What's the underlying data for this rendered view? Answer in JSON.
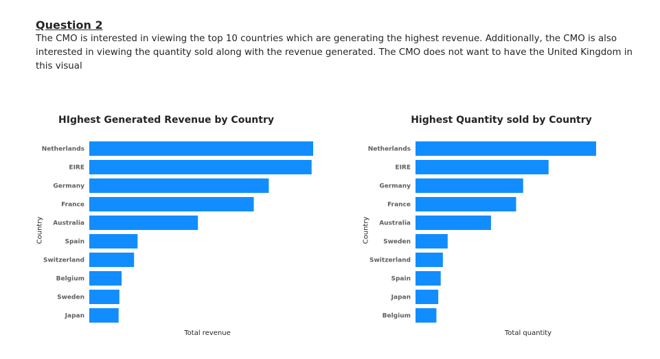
{
  "heading": "Question 2",
  "description": "The CMO is interested in viewing the top 10 countries which are generating the highest revenue. Additionally, the CMO is also interested in viewing the quantity sold along with the revenue generated. The CMO does not want to have the United Kingdom in this visual",
  "colors": {
    "bar": "#118DFF"
  },
  "chart_data": [
    {
      "type": "bar",
      "orientation": "horizontal",
      "title": "HIghest Generated Revenue by Country",
      "xlabel": "Total revenue",
      "ylabel": "Country",
      "categories": [
        "Netherlands",
        "EIRE",
        "Germany",
        "France",
        "Australia",
        "Spain",
        "Switzerland",
        "Belgium",
        "Sweden",
        "Japan"
      ],
      "values": [
        285446,
        283454,
        228867,
        209715,
        138521,
        61577,
        57090,
        41196,
        38378,
        37416
      ],
      "xlim": [
        0,
        285446
      ]
    },
    {
      "type": "bar",
      "orientation": "horizontal",
      "title": "Highest Quantity sold by Country",
      "xlabel": "Total quantity",
      "ylabel": "Country",
      "categories": [
        "Netherlands",
        "EIRE",
        "Germany",
        "France",
        "Australia",
        "Sweden",
        "Switzerland",
        "Spain",
        "Japan",
        "Belgium"
      ],
      "values": [
        200128,
        147447,
        119263,
        111472,
        83653,
        35637,
        30325,
        27951,
        25218,
        23152
      ],
      "xlim": [
        0,
        200128
      ]
    }
  ]
}
